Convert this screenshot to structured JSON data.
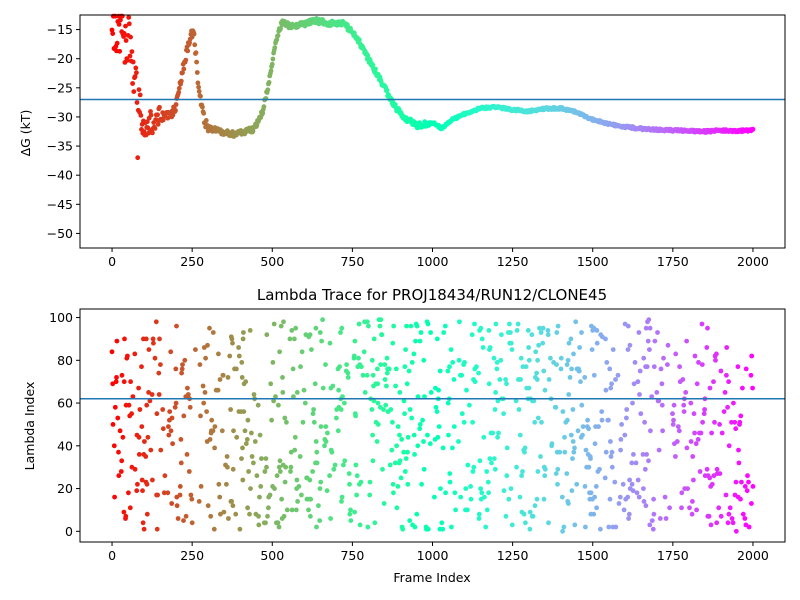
{
  "chart_data": [
    {
      "type": "scatter",
      "title": "",
      "xlabel": "",
      "ylabel": "ΔG (kT)",
      "xlim": [
        -100,
        2100
      ],
      "ylim": [
        -52.5,
        -12.5
      ],
      "xticks": [
        0,
        250,
        500,
        750,
        1000,
        1250,
        1500,
        1750,
        2000
      ],
      "yticks": [
        -50,
        -45,
        -40,
        -35,
        -30,
        -25,
        -20,
        -15
      ],
      "hline": -27,
      "hline_color": "#1f77b4",
      "colormap": "rainbow_r",
      "trace_keypoints": [
        [
          0,
          -14
        ],
        [
          10,
          -14
        ],
        [
          20,
          -14.5
        ],
        [
          35,
          -16
        ],
        [
          50,
          -17
        ],
        [
          60,
          -18
        ],
        [
          70,
          -24
        ],
        [
          85,
          -30
        ],
        [
          100,
          -32
        ],
        [
          120,
          -31
        ],
        [
          150,
          -30
        ],
        [
          180,
          -30
        ],
        [
          200,
          -28
        ],
        [
          220,
          -22
        ],
        [
          240,
          -17
        ],
        [
          255,
          -15
        ],
        [
          270,
          -25
        ],
        [
          285,
          -30
        ],
        [
          300,
          -32
        ],
        [
          340,
          -32.5
        ],
        [
          380,
          -33
        ],
        [
          420,
          -32.5
        ],
        [
          445,
          -32
        ],
        [
          470,
          -29
        ],
        [
          490,
          -24
        ],
        [
          510,
          -17
        ],
        [
          530,
          -13.8
        ],
        [
          560,
          -14.5
        ],
        [
          600,
          -14
        ],
        [
          640,
          -13.5
        ],
        [
          680,
          -14
        ],
        [
          720,
          -13.8
        ],
        [
          760,
          -16
        ],
        [
          800,
          -20
        ],
        [
          840,
          -24
        ],
        [
          880,
          -28
        ],
        [
          910,
          -30
        ],
        [
          950,
          -31.5
        ],
        [
          980,
          -31.2
        ],
        [
          1000,
          -31
        ],
        [
          1030,
          -32
        ],
        [
          1060,
          -30.5
        ],
        [
          1100,
          -29.5
        ],
        [
          1150,
          -28.5
        ],
        [
          1200,
          -28.3
        ],
        [
          1250,
          -28.8
        ],
        [
          1300,
          -29
        ],
        [
          1350,
          -28.6
        ],
        [
          1400,
          -28.5
        ],
        [
          1450,
          -29.2
        ],
        [
          1500,
          -30.5
        ],
        [
          1550,
          -31.2
        ],
        [
          1600,
          -31.7
        ],
        [
          1650,
          -32
        ],
        [
          1700,
          -32.2
        ],
        [
          1750,
          -32.3
        ],
        [
          1800,
          -32.4
        ],
        [
          1850,
          -32.5
        ],
        [
          1900,
          -32.3
        ],
        [
          1950,
          -32.4
        ],
        [
          2000,
          -32.3
        ]
      ]
    },
    {
      "type": "scatter",
      "title": "Lambda Trace for PROJ18434/RUN12/CLONE45",
      "xlabel": "Frame Index",
      "ylabel": "Lambda Index",
      "xlim": [
        -100,
        2100
      ],
      "ylim": [
        -5,
        104
      ],
      "xticks": [
        0,
        250,
        500,
        750,
        1000,
        1250,
        1500,
        1750,
        2000
      ],
      "yticks": [
        0,
        20,
        40,
        60,
        80,
        100
      ],
      "hline": 62,
      "hline_color": "#1f77b4",
      "colormap": "rainbow_r",
      "lambda_range": [
        0,
        99
      ],
      "frame_count": 2001
    }
  ]
}
